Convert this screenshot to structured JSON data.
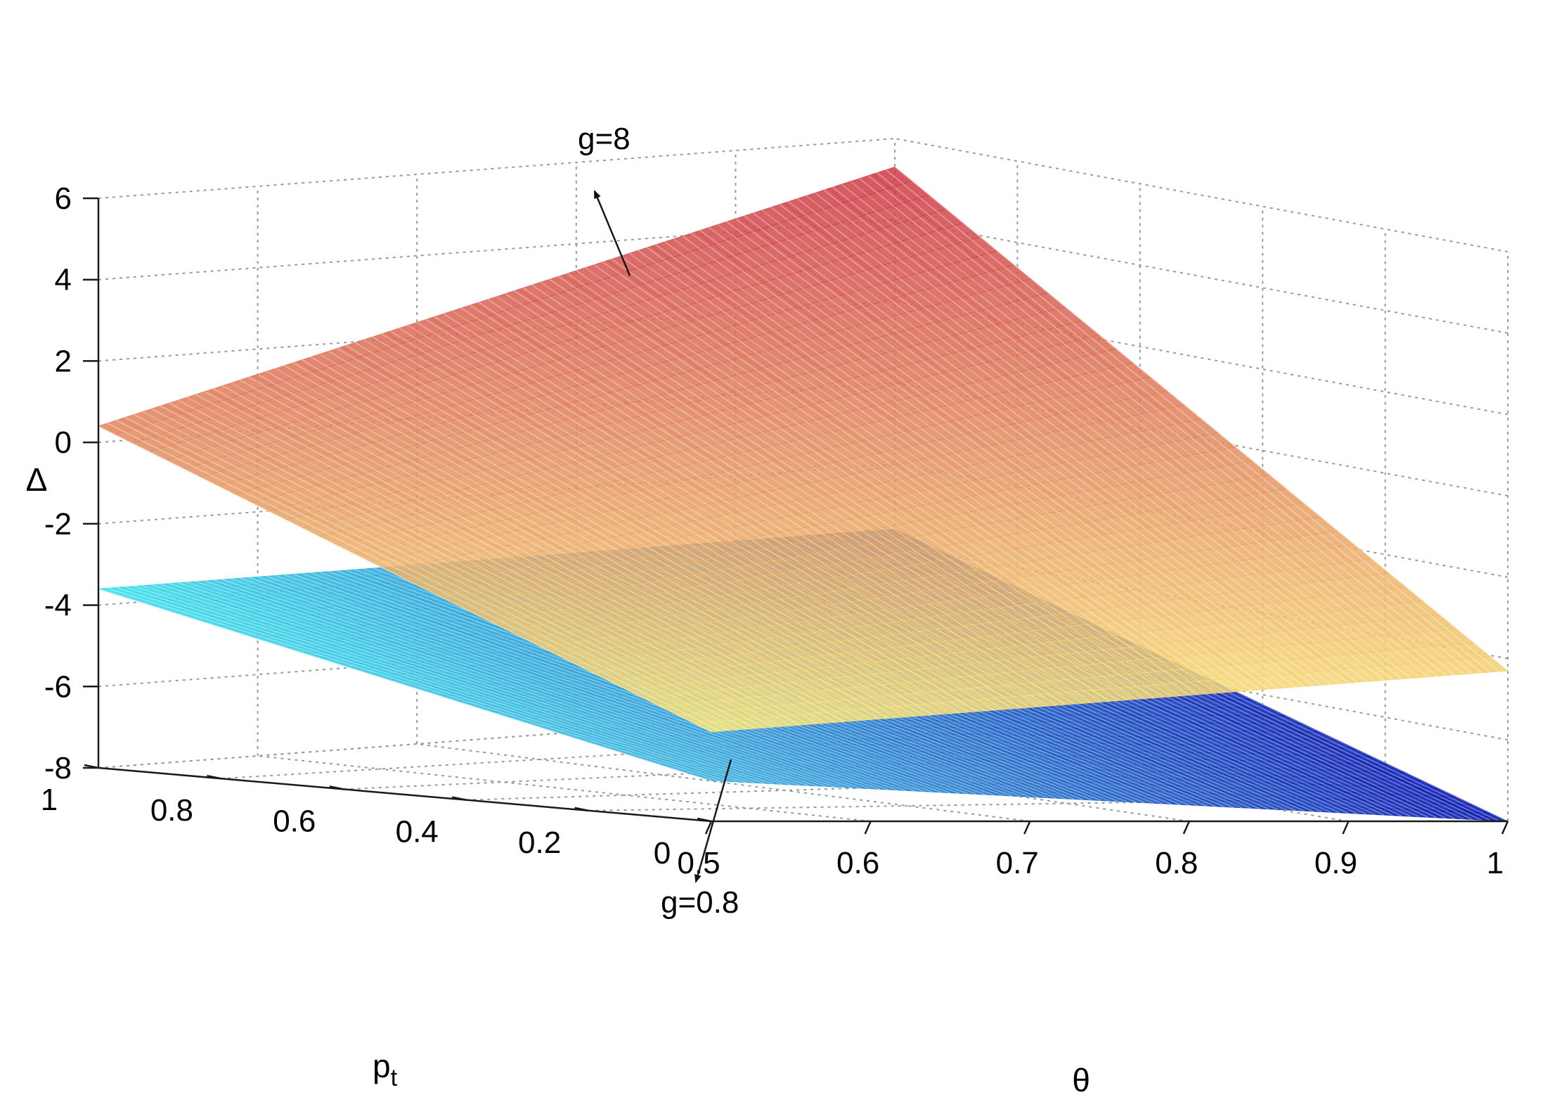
{
  "chart_data": {
    "type": "surface3d",
    "title": "",
    "xlabel": "θ",
    "ylabel": "pt",
    "ylabel_main": "p",
    "ylabel_sub": "t",
    "zlabel": "Δ",
    "xlim": [
      0.5,
      1
    ],
    "ylim": [
      0,
      1
    ],
    "zlim": [
      -8,
      6
    ],
    "grid": true,
    "x_ticks": [
      "0.5",
      "0.6",
      "0.7",
      "0.8",
      "0.9",
      "1"
    ],
    "y_ticks": [
      "0",
      "0.2",
      "0.4",
      "0.6",
      "0.8",
      "1"
    ],
    "z_ticks": [
      "-8",
      "-6",
      "-4",
      "-2",
      "0",
      "2",
      "4",
      "6"
    ],
    "series": [
      {
        "name": "g=8",
        "colormap": "autumn-yellow-red",
        "corners": [
          {
            "theta": 0.5,
            "p": 0,
            "delta": -5.8
          },
          {
            "theta": 1,
            "p": 0,
            "delta": -4.3
          },
          {
            "theta": 0.5,
            "p": 1,
            "delta": 0.4
          },
          {
            "theta": 1,
            "p": 1,
            "delta": 5.3
          }
        ]
      },
      {
        "name": "g=0.8",
        "colormap": "cyan-blue",
        "corners": [
          {
            "theta": 0.5,
            "p": 0,
            "delta": -7.0
          },
          {
            "theta": 1,
            "p": 0,
            "delta": -8.0
          },
          {
            "theta": 0.5,
            "p": 1,
            "delta": -3.6
          },
          {
            "theta": 1,
            "p": 1,
            "delta": -3.6
          }
        ]
      }
    ],
    "annotations": [
      {
        "text": "g=8",
        "target_series": "g=8"
      },
      {
        "text": "g=0.8",
        "target_series": "g=0.8"
      }
    ]
  }
}
